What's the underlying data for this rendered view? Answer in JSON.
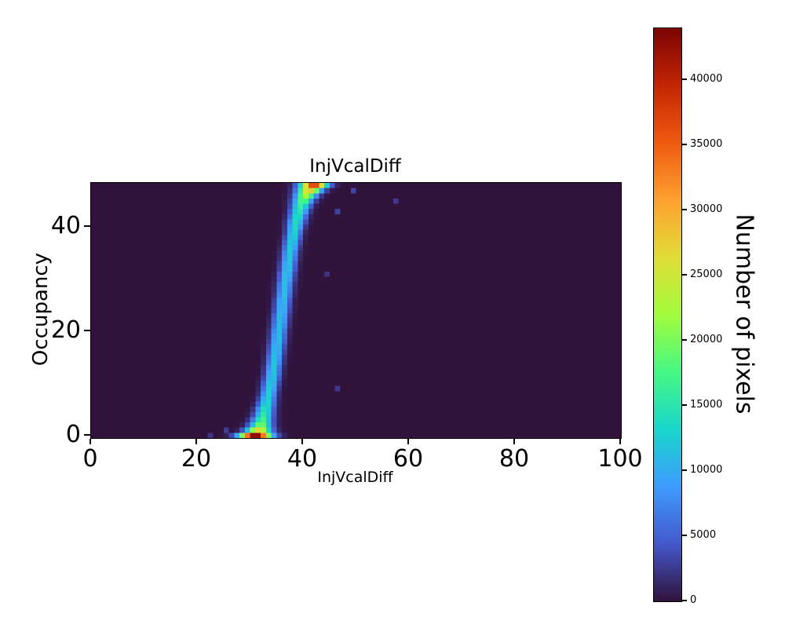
{
  "chart_data": {
    "type": "heatmap",
    "title": "InjVcalDiff",
    "xlabel": "InjVcalDiff",
    "ylabel": "Occupancy",
    "colorbar_label": "Number of pixels",
    "xlim": [
      0,
      100
    ],
    "ylim": [
      0,
      49
    ],
    "x_bins": 100,
    "y_bins": 49,
    "x_bin_width": 1,
    "y_bin_width": 1,
    "x_ticks": [
      0,
      20,
      40,
      60,
      80,
      100
    ],
    "y_ticks": [
      0,
      20,
      40
    ],
    "colorbar_ticks": [
      0,
      5000,
      10000,
      15000,
      20000,
      25000,
      30000,
      35000,
      40000
    ],
    "vmin": 0,
    "vmax": 44000,
    "background_value": 0,
    "colormap": "turbo",
    "colormap_stops": [
      "#30123b",
      "#4458cb",
      "#3e9bfe",
      "#18d6cb",
      "#46f884",
      "#a2fc3c",
      "#e1dd37",
      "#fea130",
      "#ef5a11",
      "#c42503",
      "#7a0403"
    ],
    "scurve": {
      "description": "S-curve band: per occupancy row (0-48), gaussian profile in x with given center, sigma and peak count (pixels)",
      "center": [
        31.0,
        31.6,
        32.0,
        32.3,
        32.6,
        32.8,
        33.1,
        33.3,
        33.5,
        33.7,
        33.9,
        34.1,
        34.3,
        34.4,
        34.6,
        34.7,
        34.9,
        35.0,
        35.2,
        35.3,
        35.4,
        35.6,
        35.7,
        35.8,
        36.0,
        36.1,
        36.2,
        36.4,
        36.5,
        36.6,
        36.8,
        36.9,
        37.1,
        37.2,
        37.4,
        37.5,
        37.7,
        37.9,
        38.1,
        38.3,
        38.5,
        38.7,
        39.0,
        39.3,
        39.6,
        40.0,
        40.5,
        41.2,
        42.0
      ],
      "sigma": [
        2.0,
        1.6,
        1.4,
        1.3,
        1.2,
        1.15,
        1.1,
        1.05,
        1.0,
        1.0,
        1.0,
        1.0,
        1.0,
        1.0,
        1.0,
        1.0,
        1.0,
        1.0,
        1.0,
        1.0,
        1.0,
        1.0,
        1.0,
        1.0,
        1.0,
        1.0,
        1.0,
        1.0,
        1.0,
        1.0,
        1.0,
        1.0,
        1.0,
        1.0,
        1.0,
        1.0,
        1.0,
        1.0,
        1.0,
        1.0,
        1.05,
        1.1,
        1.1,
        1.15,
        1.2,
        1.3,
        1.4,
        1.55,
        1.7
      ],
      "amplitude": [
        44000,
        27000,
        20000,
        17000,
        15500,
        14500,
        13800,
        13300,
        12900,
        12600,
        12400,
        12200,
        12000,
        11900,
        11800,
        11700,
        11600,
        11500,
        11500,
        11400,
        11400,
        11300,
        11300,
        11300,
        11300,
        11300,
        11400,
        11400,
        11500,
        11500,
        11600,
        11700,
        11800,
        11900,
        12000,
        12200,
        12400,
        12700,
        13000,
        13300,
        13700,
        14100,
        14600,
        15300,
        16500,
        18500,
        22000,
        28000,
        38000
      ]
    },
    "speckles": [
      [
        57,
        45,
        2600
      ],
      [
        49,
        47,
        3200
      ],
      [
        46,
        43,
        3000
      ],
      [
        44,
        31,
        2200
      ],
      [
        46,
        9,
        2400
      ],
      [
        25,
        1,
        2800
      ],
      [
        22,
        0,
        2200
      ]
    ]
  }
}
